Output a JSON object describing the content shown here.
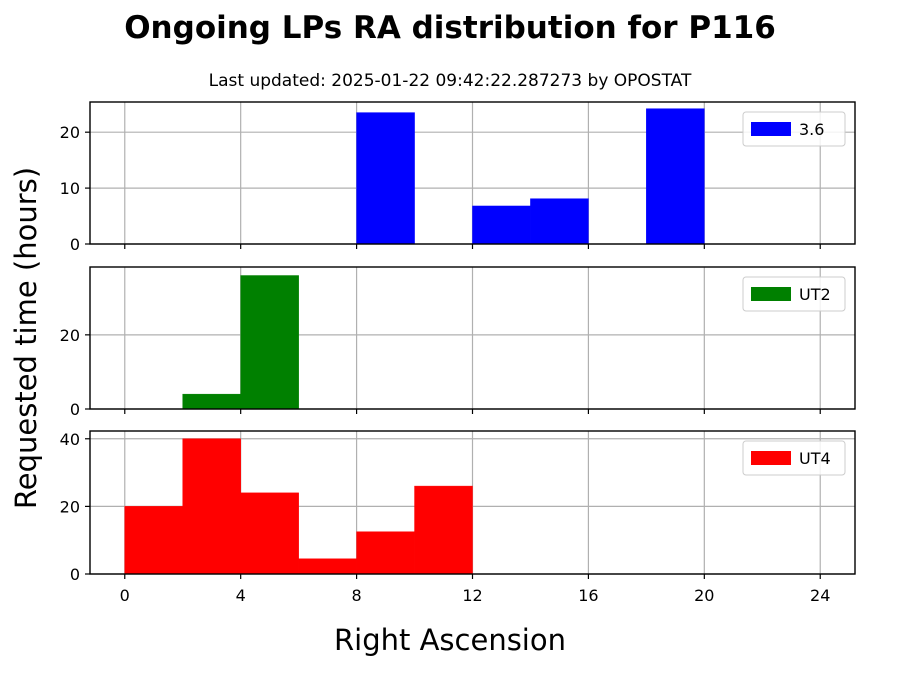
{
  "chart_data": {
    "type": "bar",
    "title": "Ongoing LPs RA distribution for P116",
    "subtitle": "Last updated: 2025-01-22 09:42:22.287273 by OPOSTAT",
    "xlabel": "Right Ascension",
    "ylabel": "Requested time (hours)",
    "xlim": [
      -1.2,
      25.2
    ],
    "x_ticks": [
      0,
      4,
      8,
      12,
      16,
      20,
      24
    ],
    "grid": true,
    "legend_position": "upper right",
    "panels": [
      {
        "name": "3.6",
        "color": "#0000ff",
        "ylim": [
          0,
          25.4
        ],
        "y_ticks": [
          0,
          10,
          20
        ],
        "bins": [
          {
            "x0": 8,
            "x1": 10,
            "value": 23.5
          },
          {
            "x0": 12,
            "x1": 14,
            "value": 6.8
          },
          {
            "x0": 14,
            "x1": 16,
            "value": 8.1
          },
          {
            "x0": 18,
            "x1": 20,
            "value": 24.2
          }
        ]
      },
      {
        "name": "UT2",
        "color": "#008000",
        "ylim": [
          0,
          38.3
        ],
        "y_ticks": [
          0,
          20
        ],
        "bins": [
          {
            "x0": 2,
            "x1": 4,
            "value": 4.0
          },
          {
            "x0": 4,
            "x1": 6,
            "value": 36.0
          }
        ]
      },
      {
        "name": "UT4",
        "color": "#ff0000",
        "ylim": [
          0,
          42.3
        ],
        "y_ticks": [
          0,
          20,
          40
        ],
        "bins": [
          {
            "x0": 0,
            "x1": 2,
            "value": 20.0
          },
          {
            "x0": 2,
            "x1": 4,
            "value": 40.0
          },
          {
            "x0": 4,
            "x1": 6,
            "value": 24.0
          },
          {
            "x0": 6,
            "x1": 8,
            "value": 4.5
          },
          {
            "x0": 8,
            "x1": 10,
            "value": 12.5
          },
          {
            "x0": 10,
            "x1": 12,
            "value": 26.0
          }
        ]
      }
    ]
  }
}
